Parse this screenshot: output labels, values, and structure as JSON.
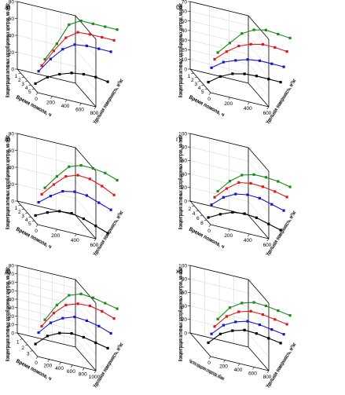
{
  "figure": {
    "ylabel": "Концентрация активных адсорбционных центров, мк-экв/г",
    "xlabel_surface": "Удельная поверхность, м²/кг",
    "colors": {
      "green": "#1a8c1a",
      "red": "#e01818",
      "blue": "#1717c8",
      "black": "#000000"
    }
  },
  "chart_data": [
    {
      "type": "line",
      "panel": "а)",
      "z3d": true,
      "ylabel": "Концентрация активных адсорбционных центров, мк-экв/г",
      "xlabel": "Удельная поверхность, м²/кг",
      "tlabel": "Время помола, ч",
      "zlim": [
        0,
        80
      ],
      "zticks": [
        "0",
        "20",
        "40",
        "60",
        "80"
      ],
      "xlim": [
        0,
        800
      ],
      "xticks": [
        "0",
        "200",
        "400",
        "600",
        "800"
      ],
      "tlim": [
        0,
        5
      ],
      "tticks": [
        "1",
        "2",
        "3",
        "4",
        "5"
      ],
      "series": [
        {
          "color": "green",
          "z": [
            24,
            45,
            70,
            77,
            76,
            75,
            74
          ]
        },
        {
          "color": "red",
          "z": [
            22,
            42,
            60,
            69,
            69,
            68,
            67
          ]
        },
        {
          "color": "blue",
          "z": [
            21,
            38,
            52,
            60,
            61,
            60,
            59
          ]
        },
        {
          "color": "black",
          "z": [
            12,
            22,
            28,
            32,
            33,
            32,
            29
          ]
        }
      ]
    },
    {
      "type": "line",
      "panel": "б)",
      "z3d": true,
      "ylabel": "Концентрация активных адсорбционных центров, мк-экв/г",
      "xlabel": "Удельная поверхность, м²/кг",
      "tlabel": "Время помола, ч",
      "zlim": [
        0,
        70
      ],
      "zticks": [
        "0",
        "10",
        "20",
        "30",
        "40",
        "50",
        "60",
        "70"
      ],
      "xlim": [
        0,
        600
      ],
      "xticks": [
        "0",
        "200",
        "400",
        "600"
      ],
      "tlim": [
        0,
        5
      ],
      "tticks": [
        "1",
        "2",
        "3",
        "4",
        "5"
      ],
      "series": [
        {
          "color": "green",
          "z": [
            28,
            40,
            52,
            58,
            60,
            58,
            56
          ]
        },
        {
          "color": "red",
          "z": [
            26,
            36,
            44,
            48,
            50,
            49,
            47
          ]
        },
        {
          "color": "blue",
          "z": [
            22,
            30,
            34,
            37,
            38,
            37,
            36
          ]
        },
        {
          "color": "black",
          "z": [
            12,
            20,
            25,
            27,
            27,
            26,
            25
          ]
        }
      ]
    },
    {
      "type": "line",
      "panel": "в)",
      "z3d": true,
      "ylabel": "Концентрация активных адсорбционных центров, мк-экв/г",
      "xlabel": "Удельная поверхность, м²/кг",
      "tlabel": "Время помола, ч",
      "zlim": [
        0,
        80
      ],
      "zticks": [
        "0",
        "20",
        "40",
        "60",
        "80"
      ],
      "xlim": [
        0,
        600
      ],
      "xticks": [
        "0",
        "200",
        "400",
        "600"
      ],
      "tlim": [
        0,
        5
      ],
      "tticks": [
        "1",
        "2",
        "3",
        "4",
        "5"
      ],
      "series": [
        {
          "color": "green",
          "z": [
            28,
            44,
            58,
            62,
            61,
            58,
            52
          ]
        },
        {
          "color": "red",
          "z": [
            26,
            40,
            52,
            56,
            54,
            48,
            40
          ]
        },
        {
          "color": "blue",
          "z": [
            22,
            32,
            40,
            42,
            40,
            34,
            28
          ]
        },
        {
          "color": "black",
          "z": [
            12,
            18,
            22,
            22,
            18,
            12,
            6
          ]
        }
      ]
    },
    {
      "type": "line",
      "panel": "г)",
      "z3d": true,
      "ylabel": "Концентрация активных адсорбционных центров, мк-экв/г",
      "xlabel": "Удельная поверхность, м²/кг",
      "tlabel": "Время помола, ч",
      "zlim": [
        0,
        100
      ],
      "zticks": [
        "0",
        "20",
        "40",
        "60",
        "80",
        "100"
      ],
      "xlim": [
        0,
        600
      ],
      "xticks": [
        "0",
        "200",
        "400",
        "600"
      ],
      "tlim": [
        0,
        8
      ],
      "tticks": [
        "2",
        "4",
        "6",
        "8"
      ],
      "series": [
        {
          "color": "green",
          "z": [
            30,
            48,
            60,
            64,
            63,
            60,
            55
          ]
        },
        {
          "color": "red",
          "z": [
            28,
            44,
            56,
            58,
            56,
            52,
            47
          ]
        },
        {
          "color": "blue",
          "z": [
            24,
            38,
            46,
            48,
            46,
            40,
            34
          ]
        },
        {
          "color": "black",
          "z": [
            12,
            20,
            26,
            27,
            24,
            18,
            12
          ]
        }
      ]
    },
    {
      "type": "line",
      "panel": "д)",
      "z3d": true,
      "ylabel": "Концентрация активных адсорбционных центров, мк-экв/г",
      "xlabel": "Удельная поверхность, м²/кг",
      "tlabel": "Время помола, ч",
      "zlim": [
        0,
        80
      ],
      "zticks": [
        "0",
        "10",
        "20",
        "30",
        "40",
        "50",
        "60",
        "70",
        "80"
      ],
      "xlim": [
        0,
        1000
      ],
      "xticks": [
        "0",
        "200",
        "400",
        "600",
        "800",
        "1000"
      ],
      "tlim": [
        0,
        3.5
      ],
      "tticks": [
        "1",
        "2",
        "3"
      ],
      "series": [
        {
          "color": "green",
          "z": [
            28,
            48,
            62,
            66,
            64,
            60,
            56
          ]
        },
        {
          "color": "red",
          "z": [
            26,
            44,
            56,
            60,
            60,
            56,
            50
          ]
        },
        {
          "color": "blue",
          "z": [
            24,
            38,
            46,
            50,
            48,
            44,
            38
          ]
        },
        {
          "color": "black",
          "z": [
            16,
            28,
            34,
            36,
            34,
            30,
            26
          ]
        }
      ]
    },
    {
      "type": "line",
      "panel": "ж)",
      "z3d": true,
      "ylabel": "Концентрация активных адсорбционных центров, мк-экв/г",
      "xlabel": "Удельная поверхность, м²/кг",
      "tlabel": "Частота вращения сепаратора, об/мин",
      "zlim": [
        0,
        100
      ],
      "zticks": [
        "0",
        "20",
        "40",
        "60",
        "80",
        "100"
      ],
      "xlim": [
        0,
        800
      ],
      "xticks": [
        "0",
        "200",
        "400",
        "600",
        "800"
      ],
      "tlim": [
        0,
        5
      ],
      "tticks": [],
      "series": [
        {
          "color": "green",
          "z": [
            36,
            56,
            66,
            70,
            68,
            64,
            60
          ]
        },
        {
          "color": "red",
          "z": [
            32,
            50,
            60,
            64,
            62,
            58,
            54
          ]
        },
        {
          "color": "blue",
          "z": [
            28,
            44,
            52,
            56,
            54,
            50,
            46
          ]
        },
        {
          "color": "black",
          "z": [
            22,
            38,
            46,
            50,
            48,
            44,
            40
          ]
        }
      ]
    }
  ]
}
